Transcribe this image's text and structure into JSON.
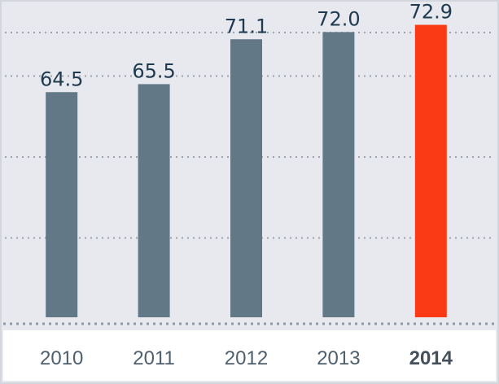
{
  "chart_data": {
    "type": "bar",
    "categories": [
      "2010",
      "2011",
      "2012",
      "2013",
      "2014"
    ],
    "values": [
      64.5,
      65.5,
      71.1,
      72.0,
      72.9
    ],
    "value_labels": [
      "64.5",
      "65.5",
      "71.1",
      "72.0",
      "72.9"
    ],
    "highlight_index": 4,
    "title": "",
    "xlabel": "",
    "ylabel": "",
    "ylim": [
      36.4,
      76
    ],
    "y_gridlines": [
      46.3,
      56.4,
      66.5
    ],
    "grid": true,
    "legend": "none",
    "colors": {
      "bar": "#627887",
      "highlight_bar": "#f93a14",
      "background": "#e7e9ee",
      "grid": "#9aa3ab",
      "value_label": "#1f3a4f",
      "tick_label": "#4e5f6e"
    }
  }
}
